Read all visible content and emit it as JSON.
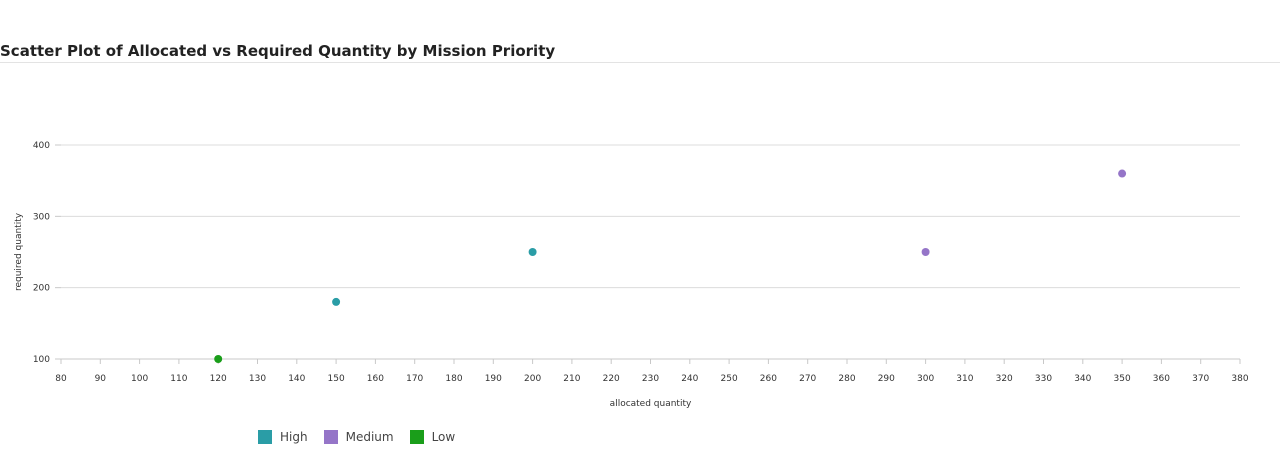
{
  "chart_data": {
    "type": "scatter",
    "title": "Scatter Plot of Allocated vs Required Quantity by Mission Priority",
    "xlabel": "allocated quantity",
    "ylabel": "required quantity",
    "xlim": [
      80,
      380
    ],
    "ylim": [
      100,
      400
    ],
    "x_ticks": [
      80,
      90,
      100,
      110,
      120,
      130,
      140,
      150,
      160,
      170,
      180,
      190,
      200,
      210,
      220,
      230,
      240,
      250,
      260,
      270,
      280,
      290,
      300,
      310,
      320,
      330,
      340,
      350,
      360,
      370,
      380
    ],
    "y_ticks": [
      100,
      200,
      300,
      400
    ],
    "grid": "horizontal",
    "legend_position": "bottom-left",
    "series": [
      {
        "name": "High",
        "color": "#2a9da6",
        "points": [
          {
            "x": 150,
            "y": 180
          },
          {
            "x": 200,
            "y": 250
          }
        ]
      },
      {
        "name": "Medium",
        "color": "#9575c8",
        "points": [
          {
            "x": 300,
            "y": 250
          },
          {
            "x": 350,
            "y": 360
          }
        ]
      },
      {
        "name": "Low",
        "color": "#1a9e1a",
        "points": [
          {
            "x": 120,
            "y": 100
          }
        ]
      }
    ]
  }
}
